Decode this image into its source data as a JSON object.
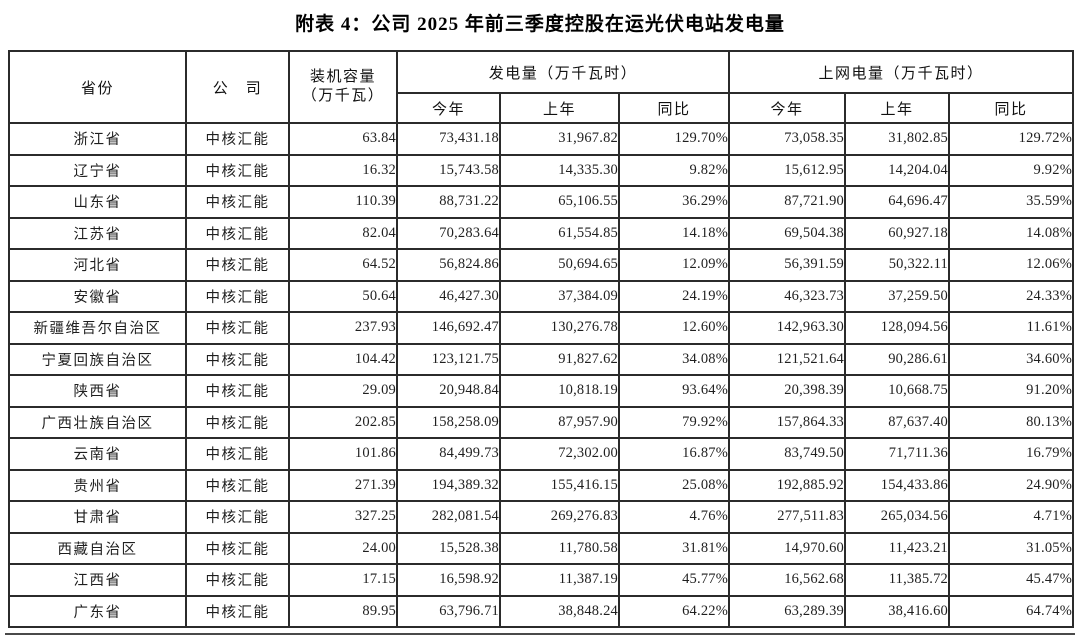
{
  "title": "附表 4：公司 2025 年前三季度控股在运光伏电站发电量",
  "table": {
    "headers": {
      "province": "省份",
      "company": "公　司",
      "capacity_line1": "装机容量",
      "capacity_line2": "（万千瓦）",
      "generation_group": "发电量（万千瓦时）",
      "grid_group": "上网电量（万千瓦时）",
      "this_year": "今年",
      "last_year": "上年",
      "yoy": "同比"
    },
    "rows": [
      [
        "浙江省",
        "中核汇能",
        "63.84",
        "73,431.18",
        "31,967.82",
        "129.70%",
        "73,058.35",
        "31,802.85",
        "129.72%"
      ],
      [
        "辽宁省",
        "中核汇能",
        "16.32",
        "15,743.58",
        "14,335.30",
        "9.82%",
        "15,612.95",
        "14,204.04",
        "9.92%"
      ],
      [
        "山东省",
        "中核汇能",
        "110.39",
        "88,731.22",
        "65,106.55",
        "36.29%",
        "87,721.90",
        "64,696.47",
        "35.59%"
      ],
      [
        "江苏省",
        "中核汇能",
        "82.04",
        "70,283.64",
        "61,554.85",
        "14.18%",
        "69,504.38",
        "60,927.18",
        "14.08%"
      ],
      [
        "河北省",
        "中核汇能",
        "64.52",
        "56,824.86",
        "50,694.65",
        "12.09%",
        "56,391.59",
        "50,322.11",
        "12.06%"
      ],
      [
        "安徽省",
        "中核汇能",
        "50.64",
        "46,427.30",
        "37,384.09",
        "24.19%",
        "46,323.73",
        "37,259.50",
        "24.33%"
      ],
      [
        "新疆维吾尔自治区",
        "中核汇能",
        "237.93",
        "146,692.47",
        "130,276.78",
        "12.60%",
        "142,963.30",
        "128,094.56",
        "11.61%"
      ],
      [
        "宁夏回族自治区",
        "中核汇能",
        "104.42",
        "123,121.75",
        "91,827.62",
        "34.08%",
        "121,521.64",
        "90,286.61",
        "34.60%"
      ],
      [
        "陕西省",
        "中核汇能",
        "29.09",
        "20,948.84",
        "10,818.19",
        "93.64%",
        "20,398.39",
        "10,668.75",
        "91.20%"
      ],
      [
        "广西壮族自治区",
        "中核汇能",
        "202.85",
        "158,258.09",
        "87,957.90",
        "79.92%",
        "157,864.33",
        "87,637.40",
        "80.13%"
      ],
      [
        "云南省",
        "中核汇能",
        "101.86",
        "84,499.73",
        "72,302.00",
        "16.87%",
        "83,749.50",
        "71,711.36",
        "16.79%"
      ],
      [
        "贵州省",
        "中核汇能",
        "271.39",
        "194,389.32",
        "155,416.15",
        "25.08%",
        "192,885.92",
        "154,433.86",
        "24.90%"
      ],
      [
        "甘肃省",
        "中核汇能",
        "327.25",
        "282,081.54",
        "269,276.83",
        "4.76%",
        "277,511.83",
        "265,034.56",
        "4.71%"
      ],
      [
        "西藏自治区",
        "中核汇能",
        "24.00",
        "15,528.38",
        "11,780.58",
        "31.81%",
        "14,970.60",
        "11,423.21",
        "31.05%"
      ],
      [
        "江西省",
        "中核汇能",
        "17.15",
        "16,598.92",
        "11,387.19",
        "45.77%",
        "16,562.68",
        "11,385.72",
        "45.47%"
      ],
      [
        "广东省",
        "中核汇能",
        "89.95",
        "63,796.71",
        "38,848.24",
        "64.22%",
        "63,289.39",
        "38,416.60",
        "64.74%"
      ]
    ]
  }
}
